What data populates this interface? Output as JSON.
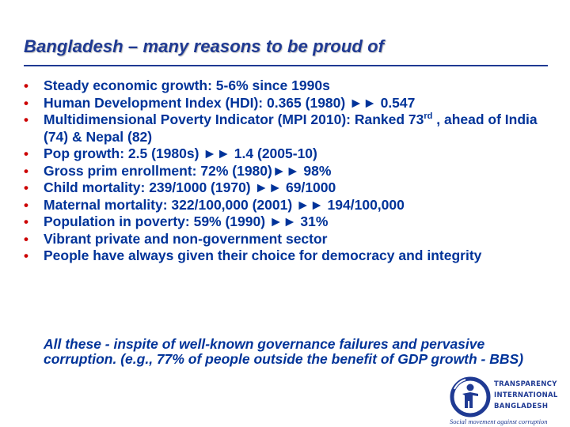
{
  "slide": {
    "title": "Bangladesh – many reasons to be proud of",
    "bullet_glyph": "•",
    "bullets": [
      {
        "pre": "Steady economic growth: 5-6% since 1990s"
      },
      {
        "pre": "Human Development Index (HDI):  0.365 (1980) ►► 0.547"
      },
      {
        "pre": "Multidimensional Poverty Indicator (MPI 2010): Ranked 73",
        "sup": "rd",
        "post": " , ahead of India (74) & Nepal (82)"
      },
      {
        "pre": "Pop growth: 2.5 (1980s) ►► 1.4 (2005-10)"
      },
      {
        "pre": "Gross prim enrollment: 72% (1980)►► 98%"
      },
      {
        "pre": "Child mortality: 239/1000 (1970) ►► 69/1000"
      },
      {
        "pre": "Maternal mortality: 322/100,000 (2001) ►► 194/100,000"
      },
      {
        "pre": "Population in poverty: 59% (1990) ►► 31%"
      },
      {
        "pre": "Vibrant private and non-government sector"
      },
      {
        "pre": "People have always given their choice for democracy and integrity"
      }
    ],
    "footnote": "All these - inspite of well-known governance failures and pervasive corruption. (e.g., 77% of people outside the benefit of GDP growth - BBS)"
  },
  "logo": {
    "line1": "TRANSPARENCY",
    "line2": "INTERNATIONAL",
    "line3": "BANGLADESH",
    "tagline": "Social movement against corruption",
    "icon": "ti-globe-figure-icon",
    "colors": {
      "brand": "#1f3a93",
      "text": "#003399",
      "bullet": "#cc0000"
    }
  }
}
